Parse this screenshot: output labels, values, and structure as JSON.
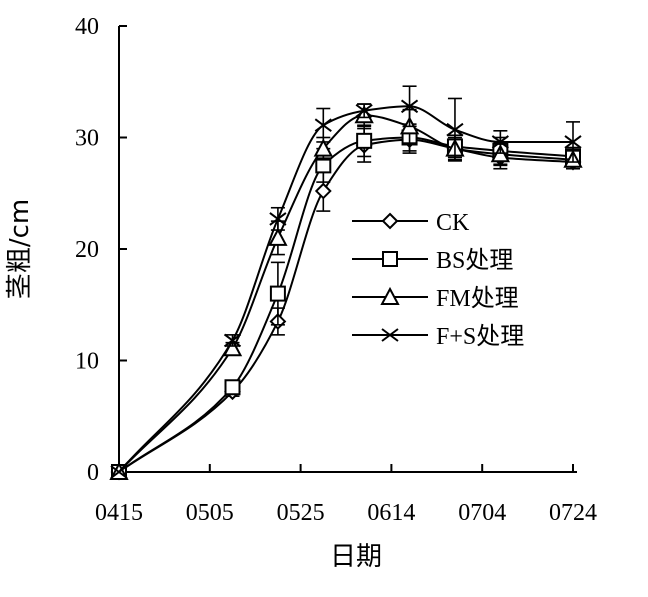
{
  "chart_data": {
    "type": "line",
    "xlabel": "日期",
    "ylabel": "茎粗/cm",
    "ylim": [
      0,
      40
    ],
    "yticks": [
      0,
      10,
      20,
      30,
      40
    ],
    "xticks": [
      {
        "label": "0415",
        "day": 0
      },
      {
        "label": "0505",
        "day": 20
      },
      {
        "label": "0525",
        "day": 40
      },
      {
        "label": "0614",
        "day": 60
      },
      {
        "label": "0704",
        "day": 80
      },
      {
        "label": "0724",
        "day": 100
      }
    ],
    "x": [
      0,
      25,
      35,
      45,
      54,
      64,
      74,
      84,
      100
    ],
    "series": [
      {
        "name": "CK",
        "marker": "diamond",
        "values": [
          0,
          7.2,
          13.5,
          25.2,
          29.3,
          29.8,
          29.0,
          28.2,
          27.8
        ],
        "errors": [
          0,
          0.4,
          1.2,
          1.8,
          1.5,
          1.2,
          0.8,
          1.0,
          0.6
        ]
      },
      {
        "name": "BS处理",
        "marker": "square",
        "values": [
          0,
          7.6,
          16.0,
          27.5,
          29.7,
          30.0,
          29.2,
          28.8,
          28.3
        ],
        "errors": [
          0,
          0.4,
          2.8,
          1.5,
          1.4,
          1.2,
          1.0,
          1.2,
          0.8
        ]
      },
      {
        "name": "FM处理",
        "marker": "triangle",
        "values": [
          0,
          11.1,
          21.0,
          29.0,
          32.0,
          31.0,
          29.0,
          28.5,
          28.0
        ],
        "errors": [
          0,
          0.5,
          1.5,
          1.0,
          1.0,
          1.5,
          1.0,
          1.0,
          0.8
        ]
      },
      {
        "name": "F+S处理",
        "marker": "x",
        "values": [
          0,
          11.8,
          22.7,
          31.1,
          32.4,
          32.8,
          30.7,
          29.6,
          29.6
        ],
        "errors": [
          0,
          0.5,
          1.0,
          1.5,
          0.6,
          1.8,
          2.8,
          1.0,
          1.8
        ]
      }
    ],
    "legend_placement": "center-right",
    "grid": false
  }
}
